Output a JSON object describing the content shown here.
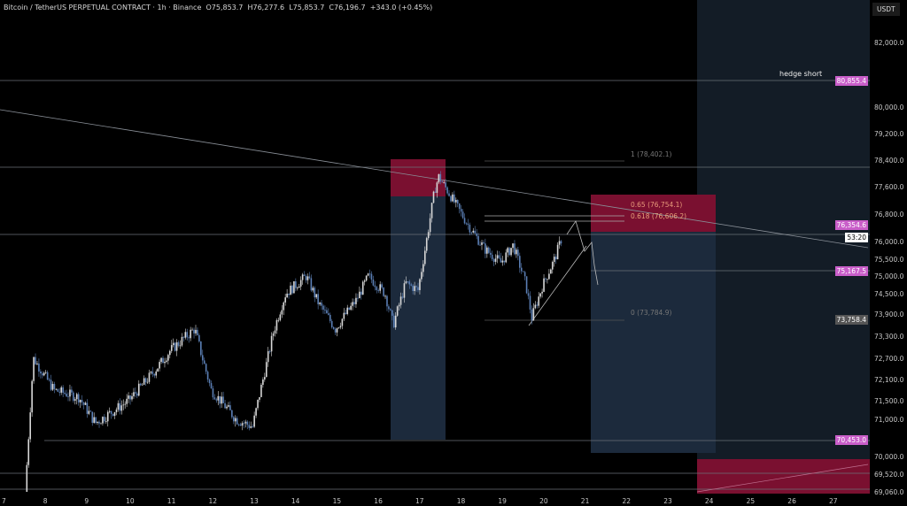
{
  "header": {
    "title": "Bitcoin / TetherUS PERPETUAL CONTRACT · 1h · Binance",
    "open": "O75,853.7",
    "high": "H76,277.6",
    "low": "L75,853.7",
    "close": "C76,196.7",
    "change": "+343.0 (+0.45%)"
  },
  "currency": "USDT",
  "annotations": {
    "hedge_short": "hedge short",
    "fib_1": "1 (78,402.1)",
    "fib_065": "0.65 (76,754.1)",
    "fib_0618": "0.618 (76,606.2)",
    "fib_0": "0 (73,784.9)"
  },
  "price_labels": {
    "hedge": "80,855.4",
    "p1": "76,354.6",
    "countdown": "53:20",
    "p2": "75,167.5",
    "p3": "73,758.4",
    "p4": "70,453.0"
  },
  "colors": {
    "up": "#d8d8d8",
    "down": "#5b7fb5",
    "label": "#c95ec9",
    "long_zone": "#1c2a3c",
    "short_zone": "#7a1030"
  },
  "chart_data": {
    "type": "candlestick",
    "y_ticks": [
      "82,000.0",
      "80,000.0",
      "79,200.0",
      "78,400.0",
      "77,600.0",
      "76,800.0",
      "76,000.0",
      "75,500.0",
      "75,000.0",
      "74,500.0",
      "73,900.0",
      "73,300.0",
      "72,700.0",
      "72,100.0",
      "71,500.0",
      "71,000.0",
      "70,000.0",
      "69,520.0",
      "69,060.0"
    ],
    "x_ticks": [
      "7",
      "8",
      "9",
      "10",
      "11",
      "12",
      "13",
      "14",
      "15",
      "16",
      "17",
      "18",
      "19",
      "20",
      "21",
      "22",
      "23",
      "24",
      "25",
      "26",
      "27"
    ],
    "price_path": [
      [
        7.5,
        69000
      ],
      [
        7.7,
        72700
      ],
      [
        8.2,
        71800
      ],
      [
        8.8,
        71600
      ],
      [
        9.2,
        70900
      ],
      [
        10,
        71500
      ],
      [
        10.6,
        72300
      ],
      [
        11,
        72900
      ],
      [
        11.6,
        73500
      ],
      [
        12,
        71800
      ],
      [
        12.6,
        71000
      ],
      [
        13,
        70800
      ],
      [
        13.5,
        73400
      ],
      [
        13.8,
        74500
      ],
      [
        14.3,
        75000
      ],
      [
        14.6,
        74200
      ],
      [
        15,
        73500
      ],
      [
        15.5,
        74300
      ],
      [
        15.8,
        75000
      ],
      [
        16.2,
        74500
      ],
      [
        16.4,
        73600
      ],
      [
        16.7,
        74800
      ],
      [
        17,
        74600
      ],
      [
        17.2,
        76000
      ],
      [
        17.4,
        77500
      ],
      [
        17.5,
        77900
      ],
      [
        17.8,
        77300
      ],
      [
        18.2,
        76500
      ],
      [
        18.6,
        75800
      ],
      [
        19,
        75400
      ],
      [
        19.3,
        75900
      ],
      [
        19.6,
        74800
      ],
      [
        19.75,
        73800
      ],
      [
        20,
        74700
      ],
      [
        20.3,
        75500
      ],
      [
        20.5,
        76196.7
      ]
    ]
  }
}
